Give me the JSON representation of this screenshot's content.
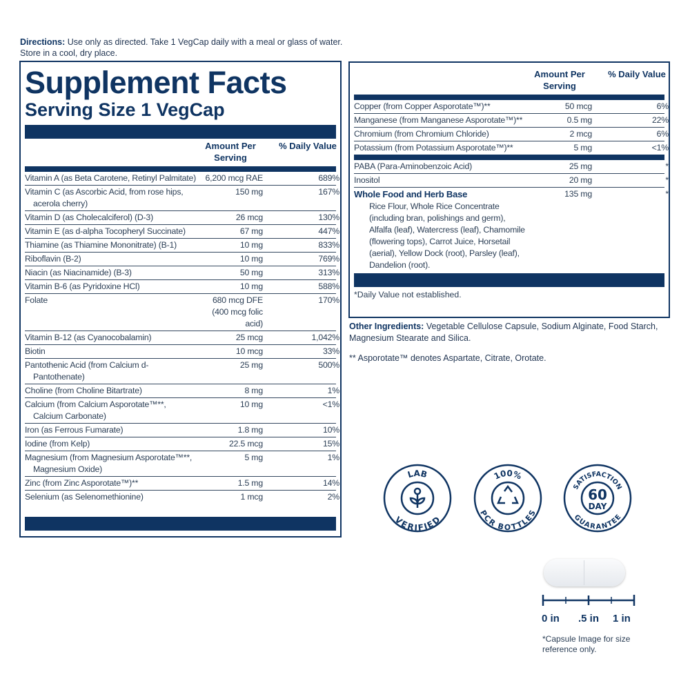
{
  "directions": {
    "label": "Directions:",
    "text": " Use only as directed. Take 1 VegCap daily with a meal or glass of water. Store in a cool, dry place."
  },
  "facts": {
    "title": "Supplement Facts",
    "serving_size": "Serving Size 1 VegCap",
    "col_amount": "Amount Per Serving",
    "col_dv": "% Daily Value",
    "rows": [
      {
        "name": "Vitamin A (as Beta Carotene, Retinyl Palmitate)",
        "amount": "6,200 mcg RAE",
        "dv": "689%"
      },
      {
        "name": "Vitamin C (as Ascorbic Acid, from rose hips, acerola cherry)",
        "amount": "150 mg",
        "dv": "167%"
      },
      {
        "name": "Vitamin D (as Cholecalciferol) (D-3)",
        "amount": "26 mcg",
        "dv": "130%"
      },
      {
        "name": "Vitamin E (as d-alpha Tocopheryl Succinate)",
        "amount": "67 mg",
        "dv": "447%"
      },
      {
        "name": "Thiamine (as Thiamine Mononitrate) (B-1)",
        "amount": "10 mg",
        "dv": "833%"
      },
      {
        "name": "Riboflavin (B-2)",
        "amount": "10 mg",
        "dv": "769%"
      },
      {
        "name": "Niacin (as Niacinamide) (B-3)",
        "amount": "50 mg",
        "dv": "313%"
      },
      {
        "name": "Vitamin B-6 (as Pyridoxine HCl)",
        "amount": "10 mg",
        "dv": "588%"
      },
      {
        "name": "Folate",
        "amount": "680 mcg DFE (400 mcg folic acid)",
        "dv": "170%"
      },
      {
        "name": "Vitamin B-12 (as Cyanocobalamin)",
        "amount": "25 mcg",
        "dv": "1,042%"
      },
      {
        "name": "Biotin",
        "amount": "10 mcg",
        "dv": "33%"
      },
      {
        "name": "Pantothenic Acid (from Calcium d-Pantothenate)",
        "amount": "25 mg",
        "dv": "500%"
      },
      {
        "name": "Choline (from Choline Bitartrate)",
        "amount": "8 mg",
        "dv": "1%"
      },
      {
        "name": "Calcium (from Calcium Asporotate™**, Calcium Carbonate)",
        "amount": "10 mg",
        "dv": "<1%"
      },
      {
        "name": "Iron (as Ferrous Fumarate)",
        "amount": "1.8 mg",
        "dv": "10%"
      },
      {
        "name": "Iodine (from Kelp)",
        "amount": "22.5 mcg",
        "dv": "15%"
      },
      {
        "name": "Magnesium (from Magnesium Asporotate™**, Magnesium Oxide)",
        "amount": "5 mg",
        "dv": "1%"
      },
      {
        "name": "Zinc (from Zinc Asporotate™)**",
        "amount": "1.5 mg",
        "dv": "14%"
      },
      {
        "name": "Selenium (as Selenomethionine)",
        "amount": "1 mcg",
        "dv": "2%"
      }
    ],
    "right_rows_a": [
      {
        "name": "Copper (from Copper Asporotate™)**",
        "amount": "50 mcg",
        "dv": "6%"
      },
      {
        "name": "Manganese (from Manganese Asporotate™)**",
        "amount": "0.5 mg",
        "dv": "22%"
      },
      {
        "name": "Chromium (from Chromium Chloride)",
        "amount": "2 mcg",
        "dv": "6%"
      },
      {
        "name": "Potassium (from Potassium Asporotate™)**",
        "amount": "5 mg",
        "dv": "<1%"
      }
    ],
    "right_rows_b": [
      {
        "name": "PABA (Para-Aminobenzoic Acid)",
        "amount": "25 mg",
        "dv": "*"
      },
      {
        "name": "Inositol",
        "amount": "20 mg",
        "dv": "*"
      }
    ],
    "herb_base": {
      "name": "Whole Food and Herb Base",
      "amount": "135 mg",
      "dv": "*",
      "ingredients": "Rice Flour, Whole Rice Concentrate (including bran, polishings and germ), Alfalfa (leaf), Watercress (leaf), Chamomile (flowering tops), Carrot Juice, Horsetail (aerial), Yellow Dock (root), Parsley (leaf), Dandelion (root)."
    },
    "footnote": "*Daily Value not established."
  },
  "other_ingredients": {
    "label": "Other Ingredients:",
    "text": " Vegetable Cellulose Capsule, Sodium Alginate, Food Starch, Magnesium Stearate and Silica."
  },
  "asporotate_note": "** Asporotate™ denotes Aspartate, Citrate, Orotate.",
  "badges": [
    {
      "top": "LAB",
      "bottom": "VERIFIED",
      "icon": "sprout-icon"
    },
    {
      "top": "100%",
      "bottom": "PCR BOTTLES",
      "icon": "recycle-icon"
    },
    {
      "top": "SATISFACTION",
      "bottom": "GUARANTEE",
      "center1": "60",
      "center2": "DAY"
    }
  ],
  "ruler": {
    "labels": [
      "0 in",
      ".5 in",
      "1 in"
    ]
  },
  "capsule_note": "*Capsule Image for size reference only.",
  "colors": {
    "navy": "#0f3462"
  }
}
